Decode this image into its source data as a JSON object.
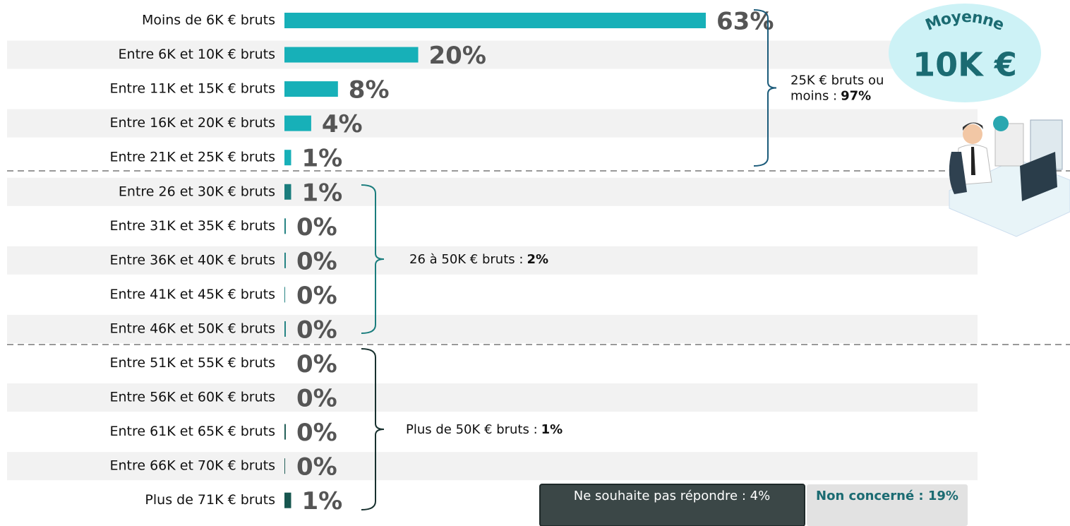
{
  "chart_data": {
    "type": "bar",
    "orientation": "horizontal",
    "categories": [
      "Moins de 6K € bruts",
      "Entre 6K et 10K € bruts",
      "Entre 11K et 15K € bruts",
      "Entre 16K et 20K € bruts",
      "Entre 21K et 25K € bruts",
      "Entre 26 et 30K € bruts",
      "Entre 31K et 35K € bruts",
      "Entre 36K et 40K € bruts",
      "Entre 41K et 45K € bruts",
      "Entre 46K et 50K € bruts",
      "Entre 51K et 55K € bruts",
      "Entre 56K et 60K € bruts",
      "Entre 61K et 65K € bruts",
      "Entre 66K et 70K € bruts",
      "Plus de 71K € bruts"
    ],
    "values": [
      63,
      20,
      8,
      4,
      1,
      1,
      0.2,
      0.2,
      0.1,
      0.2,
      0,
      0,
      0.2,
      0.1,
      1
    ],
    "value_labels": [
      "63%",
      "20%",
      "8%",
      "4%",
      "1%",
      "1%",
      "0%",
      "0%",
      "0%",
      "0%",
      "0%",
      "0%",
      "0%",
      "0%",
      "1%"
    ],
    "colors": [
      "#17b0b8",
      "#17b0b8",
      "#17b0b8",
      "#17b0b8",
      "#17b0b8",
      "#1a7d7d",
      "#1a7d7d",
      "#1a7d7d",
      "#1a7d7d",
      "#1a7d7d",
      "#17564f",
      "#17564f",
      "#17564f",
      "#17564f",
      "#17564f"
    ],
    "xlim": [
      0,
      63
    ],
    "groups": [
      {
        "lines": [
          "25K € bruts ou",
          "moins :"
        ],
        "total": "97%"
      },
      {
        "lines": [
          "26 à 50K € bruts :"
        ],
        "total": "2%"
      },
      {
        "lines": [
          "Plus de 50K € bruts :"
        ],
        "total": "1%"
      }
    ],
    "badge": {
      "title": "Moyenne",
      "value": "10K €"
    },
    "footer": [
      "Ne souhaite pas répondre : 4%",
      "Non concerné : 19%"
    ]
  }
}
